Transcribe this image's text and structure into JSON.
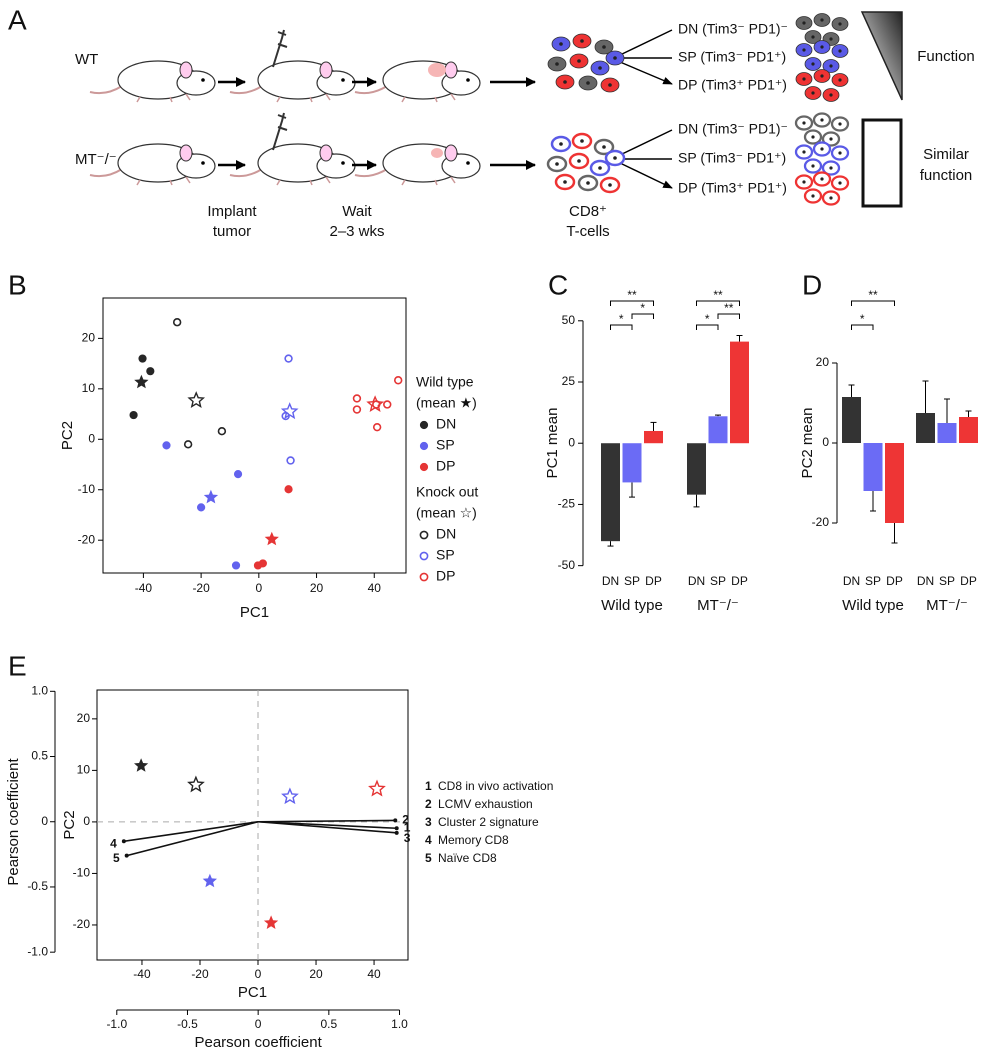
{
  "diagram": {
    "panel": "A",
    "rows": [
      "WT",
      "MT⁻/⁻"
    ],
    "steps": [
      [
        "Implant",
        "tumor"
      ],
      [
        "Wait",
        "2–3 wks"
      ]
    ],
    "cells": [
      "CD8⁺",
      "T-cells"
    ],
    "subsets": [
      "DN (Tim3⁻ PD1)⁻",
      "SP (Tim3⁻ PD1⁺)",
      "DP (Tim3⁺ PD1⁺)"
    ],
    "outcomes": [
      [
        "Function"
      ],
      [
        "Similar",
        "function"
      ]
    ]
  },
  "chart_data": [
    {
      "type": "scatter",
      "panel": "B",
      "xlabel": "PC1",
      "ylabel": "PC2",
      "xlim": [
        -54,
        51
      ],
      "ylim": [
        -26.5,
        28
      ],
      "xticks": [
        -40,
        -20,
        0,
        20,
        40
      ],
      "yticks": [
        -20,
        -10,
        0,
        10,
        20
      ],
      "groups": [
        {
          "name": "Wild type",
          "note": "(mean ★)",
          "filled": true,
          "series": [
            {
              "name": "DN",
              "color": "#262626",
              "x": [
                -40.3,
                -37.6,
                -43.4
              ],
              "values": [
                16.0,
                13.5,
                4.8
              ],
              "mean_x": -40.7,
              "mean_y": 11.3
            },
            {
              "name": "SP",
              "color": "#6262ee",
              "x": [
                -32,
                -7.2,
                -20,
                -7.9
              ],
              "values": [
                -1.2,
                -6.9,
                -13.5,
                -25
              ],
              "mean_x": -16.6,
              "mean_y": -11.5
            },
            {
              "name": "DP",
              "color": "#e53535",
              "x": [
                10.3,
                1.4,
                -0.3
              ],
              "values": [
                -9.9,
                -24.6,
                -25
              ],
              "mean_x": 4.5,
              "mean_y": -19.8
            }
          ]
        },
        {
          "name": "Knock out",
          "note": "(mean ☆)",
          "filled": false,
          "series": [
            {
              "name": "DN",
              "color": "#262626",
              "x": [
                -28.3,
                -24.5,
                -12.8
              ],
              "values": [
                23.2,
                -1.0,
                1.6
              ],
              "mean_x": -21.7,
              "mean_y": 7.7
            },
            {
              "name": "SP",
              "color": "#6262ee",
              "x": [
                10.3,
                9.3,
                11
              ],
              "values": [
                16,
                4.6,
                -4.2
              ],
              "mean_x": 10.7,
              "mean_y": 5.5
            },
            {
              "name": "DP",
              "color": "#e53535",
              "x": [
                34,
                34,
                40.7,
                41,
                44.5,
                48.3
              ],
              "values": [
                8.1,
                5.9,
                6.9,
                2.4,
                6.9,
                11.7
              ],
              "mean_x": 40.3,
              "mean_y": 6.9
            }
          ]
        }
      ]
    },
    {
      "type": "bar",
      "panel": "C",
      "ylabel": "PC1 mean",
      "ylim": [
        -53,
        54
      ],
      "yticks": [
        -50,
        -25,
        0,
        25,
        50
      ],
      "categories": [
        "DN",
        "SP",
        "DP"
      ],
      "colors": [
        "#333333",
        "#6b6bf5",
        "#ee3535"
      ],
      "groups": [
        {
          "name": "Wild type",
          "values": [
            -40,
            -16,
            5
          ],
          "errors": [
            2,
            6,
            3.5
          ],
          "significance": [
            {
              "from": 0,
              "to": 1,
              "label": "*"
            },
            {
              "from": 1,
              "to": 2,
              "label": "*"
            },
            {
              "from": 0,
              "to": 2,
              "label": "**"
            }
          ]
        },
        {
          "name": "MT⁻/⁻",
          "values": [
            -21,
            11,
            41.5
          ],
          "errors": [
            5,
            0.5,
            2.5
          ],
          "significance": [
            {
              "from": 0,
              "to": 1,
              "label": "*"
            },
            {
              "from": 1,
              "to": 2,
              "label": "**"
            },
            {
              "from": 0,
              "to": 2,
              "label": "**"
            }
          ]
        }
      ]
    },
    {
      "type": "bar",
      "panel": "D",
      "ylabel": "PC2 mean",
      "ylim": [
        -32.5,
        33
      ],
      "yticks": [
        -20,
        0,
        20
      ],
      "categories": [
        "DN",
        "SP",
        "DP"
      ],
      "colors": [
        "#333333",
        "#6b6bf5",
        "#ee3535"
      ],
      "groups": [
        {
          "name": "Wild type",
          "values": [
            11.5,
            -12,
            -20
          ],
          "errors": [
            3,
            5,
            5
          ],
          "significance": [
            {
              "from": 0,
              "to": 1,
              "label": "*"
            },
            {
              "from": 0,
              "to": 2,
              "label": "**"
            }
          ]
        },
        {
          "name": "MT⁻/⁻",
          "values": [
            7.5,
            5,
            6.5
          ],
          "errors": [
            8,
            6,
            1.5
          ],
          "significance": []
        }
      ]
    },
    {
      "type": "biplot",
      "panel": "E",
      "xlabel": "PC1",
      "ylabel": "PC2",
      "x2label": "Pearson coefficient",
      "y2label": "Pearson coefficient",
      "xlim": [
        -55.5,
        51.7
      ],
      "ylim": [
        -26.8,
        25.6
      ],
      "xticks": [
        -40,
        -20,
        0,
        20,
        40
      ],
      "yticks": [
        -20,
        -10,
        0,
        10,
        20
      ],
      "x2lim": [
        -1.14,
        1.06
      ],
      "y2lim": [
        -1.06,
        1.01
      ],
      "x2ticks": [
        {
          "value": -1,
          "label": "-1.0"
        },
        -0.5,
        0,
        0.5,
        {
          "value": 1,
          "label": "1.0"
        }
      ],
      "y2ticks": [
        {
          "value": -1,
          "label": "-1.0"
        },
        -0.5,
        0,
        0.5,
        {
          "value": 1,
          "label": "1.0"
        }
      ],
      "points": [
        {
          "color": "#262626",
          "filled": true,
          "x": -40.3,
          "y": 10.9
        },
        {
          "color": "#262626",
          "filled": false,
          "x": -21.4,
          "y": 7.2
        },
        {
          "color": "#6262ee",
          "filled": false,
          "x": 11,
          "y": 4.9
        },
        {
          "color": "#e53535",
          "filled": false,
          "x": 41,
          "y": 6.4
        },
        {
          "color": "#6262ee",
          "filled": true,
          "x": -16.6,
          "y": -11.5
        },
        {
          "color": "#e53535",
          "filled": true,
          "x": 4.5,
          "y": -19.6
        }
      ],
      "vectors": [
        {
          "id": "1",
          "label": "CD8 in vivo activation",
          "x": 0.98,
          "y": -0.05
        },
        {
          "id": "2",
          "label": "LCMV exhaustion",
          "x": 0.97,
          "y": 0.01
        },
        {
          "id": "3",
          "label": "Cluster 2 signature",
          "x": 0.98,
          "y": -0.085
        },
        {
          "id": "4",
          "label": "Memory CD8",
          "x": -0.95,
          "y": -0.15
        },
        {
          "id": "5",
          "label": "Naïve CD8",
          "x": -0.93,
          "y": -0.26
        }
      ]
    }
  ]
}
